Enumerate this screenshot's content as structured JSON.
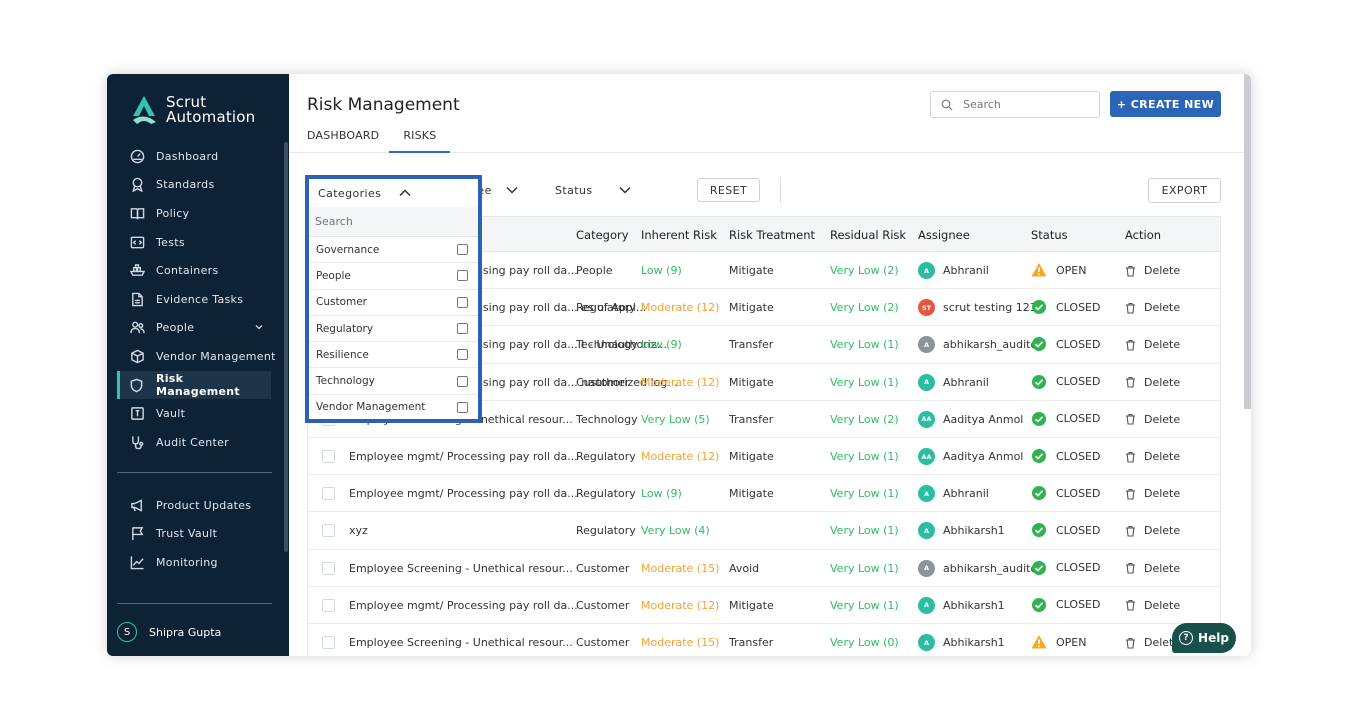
{
  "app": {
    "logo_line1": "Scrut",
    "logo_line2": "Automation"
  },
  "sidebar": {
    "items": [
      {
        "label": "Dashboard",
        "icon": "dashboard-icon"
      },
      {
        "label": "Standards",
        "icon": "award-icon"
      },
      {
        "label": "Policy",
        "icon": "book-icon"
      },
      {
        "label": "Tests",
        "icon": "code-icon"
      },
      {
        "label": "Containers",
        "icon": "ship-icon"
      },
      {
        "label": "Evidence Tasks",
        "icon": "file-icon"
      },
      {
        "label": "People",
        "icon": "people-icon"
      },
      {
        "label": "Vendor Management",
        "icon": "box-icon"
      },
      {
        "label": "Risk Management",
        "icon": "shield-icon"
      },
      {
        "label": "Vault",
        "icon": "vault-icon"
      },
      {
        "label": "Audit Center",
        "icon": "stethoscope-icon"
      }
    ],
    "secondary": [
      {
        "label": "Product Updates",
        "icon": "megaphone-icon"
      },
      {
        "label": "Trust Vault",
        "icon": "flag-icon"
      },
      {
        "label": "Monitoring",
        "icon": "chart-icon"
      }
    ],
    "user": {
      "initial": "S",
      "name": "Shipra Gupta"
    }
  },
  "header": {
    "title": "Risk Management",
    "tabs": [
      "DASHBOARD",
      "RISKS"
    ],
    "search_placeholder": "Search",
    "create_label": "+ CREATE NEW"
  },
  "filters": {
    "categories": "Categories",
    "assignee": "Assignee",
    "status": "Status",
    "reset": "RESET",
    "export": "EXPORT"
  },
  "dropdown": {
    "search_placeholder": "Search",
    "options": [
      "Governance",
      "People",
      "Customer",
      "Regulatory",
      "Resilience",
      "Technology",
      "Vendor Management"
    ]
  },
  "table": {
    "columns": [
      "Category",
      "Inherent Risk",
      "Risk Treatment",
      "Residual Risk",
      "Assignee",
      "Status",
      "Action"
    ],
    "rows": [
      {
        "name": "Employee mgmt/ Processing pay roll da...",
        "category": "People",
        "inherent": "Low (9)",
        "inherent_level": "green",
        "treatment": "Mitigate",
        "residual": "Very Low (2)",
        "assignee": "Abhranil",
        "initials": "A",
        "avatar_color": "#2bbd9f",
        "status": "OPEN",
        "action": "Delete"
      },
      {
        "name": "Employee mgmt/ Processing pay roll da... es of Appl...",
        "category": "Regulatory",
        "inherent": "Moderate (12)",
        "inherent_level": "orange",
        "treatment": "Mitigate",
        "residual": "Very Low (2)",
        "assignee": "scrut testing 123",
        "initials": "ST",
        "avatar_color": "#e5553f",
        "status": "CLOSED",
        "action": "Delete"
      },
      {
        "name": "Employee mgmt/ Processing pay roll da... t - Unauthoriz...",
        "category": "Technology",
        "inherent": "Low (9)",
        "inherent_level": "green",
        "treatment": "Transfer",
        "residual": "Very Low (1)",
        "assignee": "abhikarsh_auditor",
        "initials": "A",
        "avatar_color": "#8d9399",
        "status": "CLOSED",
        "action": "Delete"
      },
      {
        "name": "Employee mgmt/ Processing pay roll da... nauthorized log...",
        "category": "Customer",
        "inherent": "Moderate (12)",
        "inherent_level": "orange",
        "treatment": "Mitigate",
        "residual": "Very Low (1)",
        "assignee": "Abhranil",
        "initials": "A",
        "avatar_color": "#2bbd9f",
        "status": "CLOSED",
        "action": "Delete"
      },
      {
        "name": "Employee Screening - Unethical resour...",
        "category": "Technology",
        "inherent": "Very Low (5)",
        "inherent_level": "green",
        "treatment": "Transfer",
        "residual": "Very Low (2)",
        "assignee": "Aaditya Anmol",
        "initials": "AA",
        "avatar_color": "#2bbd9f",
        "status": "CLOSED",
        "action": "Delete"
      },
      {
        "name": "Employee mgmt/ Processing pay roll da...",
        "category": "Regulatory",
        "inherent": "Moderate (12)",
        "inherent_level": "orange",
        "treatment": "Mitigate",
        "residual": "Very Low (1)",
        "assignee": "Aaditya Anmol",
        "initials": "AA",
        "avatar_color": "#2bbd9f",
        "status": "CLOSED",
        "action": "Delete"
      },
      {
        "name": "Employee mgmt/ Processing pay roll da...",
        "category": "Regulatory",
        "inherent": "Low (9)",
        "inherent_level": "green",
        "treatment": "Mitigate",
        "residual": "Very Low (1)",
        "assignee": "Abhranil",
        "initials": "A",
        "avatar_color": "#2bbd9f",
        "status": "CLOSED",
        "action": "Delete"
      },
      {
        "name": "xyz",
        "category": "Regulatory",
        "inherent": "Very Low (4)",
        "inherent_level": "green",
        "treatment": "",
        "residual": "Very Low (1)",
        "assignee": "Abhikarsh1",
        "initials": "A",
        "avatar_color": "#2bbd9f",
        "status": "CLOSED",
        "action": "Delete"
      },
      {
        "name": "Employee Screening - Unethical resour...",
        "category": "Customer",
        "inherent": "Moderate (15)",
        "inherent_level": "orange",
        "treatment": "Avoid",
        "residual": "Very Low (1)",
        "assignee": "abhikarsh_auditor",
        "initials": "A",
        "avatar_color": "#8d9399",
        "status": "CLOSED",
        "action": "Delete"
      },
      {
        "name": "Employee mgmt/ Processing pay roll da...",
        "category": "Customer",
        "inherent": "Moderate (12)",
        "inherent_level": "orange",
        "treatment": "Mitigate",
        "residual": "Very Low (1)",
        "assignee": "Abhikarsh1",
        "initials": "A",
        "avatar_color": "#2bbd9f",
        "status": "CLOSED",
        "action": "Delete"
      },
      {
        "name": "Employee Screening - Unethical resour...",
        "category": "Customer",
        "inherent": "Moderate (15)",
        "inherent_level": "orange",
        "treatment": "Transfer",
        "residual": "Very Low (0)",
        "assignee": "Abhikarsh1",
        "initials": "A",
        "avatar_color": "#2bbd9f",
        "status": "OPEN",
        "action": "Delete"
      }
    ]
  },
  "help": {
    "label": "Help"
  },
  "colors": {
    "sidebar_bg": "#0e2235",
    "accent_blue": "#2a65b8",
    "teal": "#35c3b0",
    "green": "#34b865",
    "orange": "#f0a232"
  }
}
